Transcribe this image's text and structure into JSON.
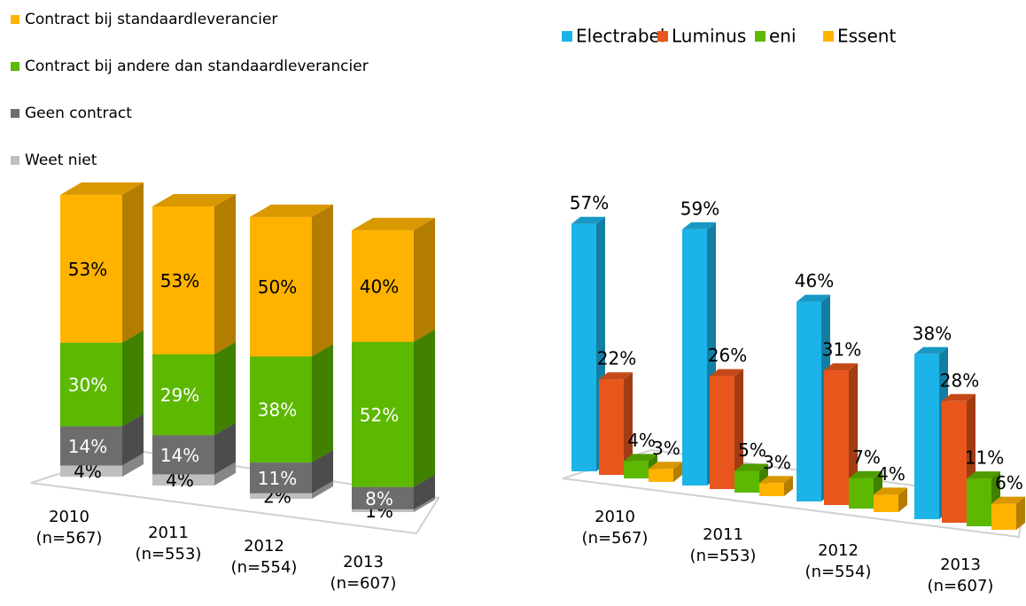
{
  "chart_data": [
    {
      "type": "stacked-bar",
      "categories": [
        "2010\n(n=567)",
        "2011\n(n=553)",
        "2012\n(n=554)",
        "2013\n(n=607)"
      ],
      "series": [
        {
          "name": "Contract bij standaardleverancier",
          "color": "#ffb300",
          "values": [
            53,
            53,
            50,
            40
          ],
          "value_labels": [
            "53%",
            "53%",
            "50%",
            "40%"
          ]
        },
        {
          "name": "Contract bij andere dan standaardleverancier",
          "color": "#5cb800",
          "values": [
            30,
            29,
            38,
            52
          ],
          "value_labels": [
            "30%",
            "29%",
            "38%",
            "52%"
          ]
        },
        {
          "name": "Geen contract",
          "color": "#6d6d6d",
          "values": [
            14,
            14,
            11,
            8
          ],
          "value_labels": [
            "14%",
            "14%",
            "11%",
            "8%"
          ]
        },
        {
          "name": "Weet niet",
          "color": "#bfbfbf",
          "values": [
            4,
            4,
            2,
            1
          ],
          "value_labels": [
            "4%",
            "4%",
            "2%",
            "1%"
          ]
        }
      ],
      "legend": "top-left"
    },
    {
      "type": "grouped-bar",
      "categories": [
        "2010\n(n=567)",
        "2011\n(n=553)",
        "2012\n(n=554)",
        "2013\n(n=607)"
      ],
      "series": [
        {
          "name": "Electrabel",
          "color": "#1cb4e8",
          "values": [
            57,
            59,
            46,
            38
          ],
          "value_labels": [
            "57%",
            "59%",
            "46%",
            "38%"
          ]
        },
        {
          "name": "Luminus",
          "color": "#e8561c",
          "values": [
            22,
            26,
            31,
            28
          ],
          "value_labels": [
            "22%",
            "26%",
            "31%",
            "28%"
          ]
        },
        {
          "name": "eni",
          "color": "#5cb800",
          "values": [
            4,
            5,
            7,
            11
          ],
          "value_labels": [
            "4%",
            "5%",
            "7%",
            "11%"
          ]
        },
        {
          "name": "Essent",
          "color": "#ffb300",
          "values": [
            3,
            3,
            4,
            6
          ],
          "value_labels": [
            "3%",
            "3%",
            "4%",
            "6%"
          ]
        }
      ],
      "legend": "top"
    }
  ]
}
